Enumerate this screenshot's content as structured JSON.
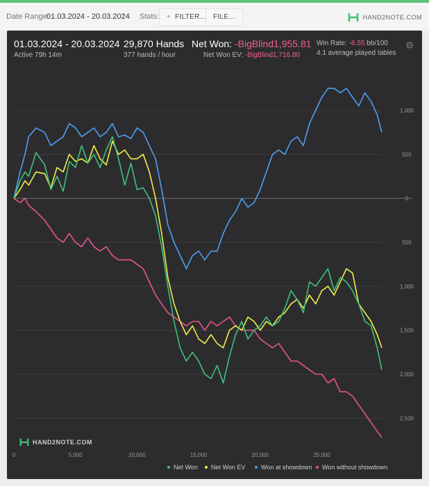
{
  "toolbar": {
    "date_range_label": "Date Range:",
    "date_range_value": "01.03.2024 - 20.03.2024",
    "stats_label": "Stats:",
    "filter_label": "FILTER...",
    "file_label": "FILE...",
    "brand_name": "HAND2NOTE.COM",
    "icons": [
      "chevron-down-icon",
      "plus-icon",
      "hand2note-logo-icon"
    ]
  },
  "summary": {
    "date_range": "01.03.2024 - 20.03.2024",
    "active_time": "Active 79h 14m",
    "hands_count": "29,870 Hands",
    "hands_rate": "377 hands / hour",
    "net_won_label": "Net Won:",
    "net_won_value": "-BigBlind1,955.81",
    "net_won_ev_label": "Net Won  EV:",
    "net_won_ev_value": "-BigBlind1,716.80",
    "win_rate_label": "Win Rate:",
    "win_rate_value": "-6.55",
    "win_rate_unit": "bb/100",
    "avg_tables": "4.1 average played tables",
    "settings_icon": "gear-icon"
  },
  "colors": {
    "net_won": "#3fc27a",
    "net_won_ev": "#f2ee47",
    "won_at_showdown": "#4e9ff0",
    "won_without_showdown": "#e8538a",
    "negative_text": "#ef5f86",
    "card_bg": "#2c2c2e"
  },
  "watermark": "HAND2NOTE.COM",
  "chart_data": {
    "type": "line",
    "xlim": [
      0,
      29870
    ],
    "ylim": [
      -2750,
      1450
    ],
    "x_ticks": [
      0,
      5000,
      10000,
      15000,
      20000,
      25000
    ],
    "x_tick_labels": [
      "0",
      "5,000",
      "10,000",
      "15,000",
      "20,000",
      "25,000"
    ],
    "y_ticks": [
      1000,
      500,
      0,
      -500,
      -1000,
      -1500,
      -2000,
      -2500
    ],
    "y_tick_labels": [
      "1,000",
      "500",
      "0",
      "500",
      "1,000",
      "1,500",
      "2,000",
      "2,500"
    ],
    "grid": true,
    "legend_position": "bottom-right",
    "series": [
      {
        "name": "Net Won",
        "x": [
          0,
          500,
          900,
          1200,
          1800,
          2500,
          3000,
          3500,
          4000,
          4500,
          5000,
          5500,
          6000,
          6500,
          7000,
          7500,
          8000,
          8500,
          9000,
          9500,
          10000,
          10500,
          11000,
          11500,
          12000,
          12500,
          13000,
          13500,
          14000,
          14500,
          15000,
          15500,
          16000,
          16500,
          17000,
          17500,
          18000,
          18500,
          19000,
          19500,
          20000,
          20500,
          21000,
          21500,
          22000,
          22500,
          23000,
          23500,
          24000,
          24500,
          25000,
          25500,
          26000,
          26500,
          27000,
          27500,
          28000,
          28500,
          29000,
          29500,
          29870
        ],
        "y": [
          0,
          200,
          300,
          250,
          520,
          380,
          100,
          250,
          80,
          420,
          350,
          600,
          400,
          500,
          350,
          550,
          700,
          450,
          150,
          400,
          100,
          120,
          0,
          -200,
          -550,
          -1000,
          -1400,
          -1700,
          -1850,
          -1750,
          -1850,
          -2000,
          -2050,
          -1900,
          -2100,
          -1800,
          -1550,
          -1400,
          -1600,
          -1500,
          -1450,
          -1350,
          -1450,
          -1400,
          -1250,
          -1050,
          -1150,
          -1300,
          -950,
          -1000,
          -900,
          -800,
          -1050,
          -900,
          -950,
          -1050,
          -1200,
          -1400,
          -1450,
          -1700,
          -1950
        ]
      },
      {
        "name": "Net Won  EV",
        "x": [
          0,
          500,
          900,
          1200,
          1800,
          2500,
          3000,
          3500,
          4000,
          4500,
          5000,
          5500,
          6000,
          6500,
          7000,
          7500,
          8000,
          8500,
          9000,
          9500,
          10000,
          10500,
          11000,
          11500,
          12000,
          12500,
          13000,
          13500,
          14000,
          14500,
          15000,
          15500,
          16000,
          16500,
          17000,
          17500,
          18000,
          18500,
          19000,
          19500,
          20000,
          20500,
          21000,
          21500,
          22000,
          22500,
          23000,
          23500,
          24000,
          24500,
          25000,
          25500,
          26000,
          26500,
          27000,
          27500,
          28000,
          28500,
          29000,
          29500,
          29870
        ],
        "y": [
          0,
          100,
          200,
          150,
          300,
          280,
          120,
          350,
          300,
          500,
          420,
          450,
          400,
          600,
          450,
          380,
          650,
          500,
          550,
          450,
          450,
          500,
          300,
          0,
          -400,
          -900,
          -1200,
          -1400,
          -1550,
          -1450,
          -1600,
          -1650,
          -1550,
          -1650,
          -1700,
          -1500,
          -1450,
          -1500,
          -1350,
          -1400,
          -1500,
          -1400,
          -1450,
          -1350,
          -1300,
          -1200,
          -1150,
          -1250,
          -1100,
          -1200,
          -1050,
          -1000,
          -1100,
          -950,
          -800,
          -850,
          -1200,
          -1300,
          -1400,
          -1550,
          -1700
        ]
      },
      {
        "name": "Won at showdown",
        "x": [
          0,
          500,
          900,
          1200,
          1800,
          2500,
          3000,
          3500,
          4000,
          4500,
          5000,
          5500,
          6000,
          6500,
          7000,
          7500,
          8000,
          8500,
          9000,
          9500,
          10000,
          10500,
          11000,
          11500,
          12000,
          12500,
          13000,
          13500,
          14000,
          14500,
          15000,
          15500,
          16000,
          16500,
          17000,
          17500,
          18000,
          18500,
          19000,
          19500,
          20000,
          20500,
          21000,
          21500,
          22000,
          22500,
          23000,
          23500,
          24000,
          24500,
          25000,
          25500,
          26000,
          26500,
          27000,
          27500,
          28000,
          28500,
          29000,
          29500,
          29870
        ],
        "y": [
          0,
          300,
          500,
          700,
          800,
          750,
          600,
          650,
          700,
          850,
          800,
          700,
          750,
          800,
          700,
          750,
          850,
          700,
          720,
          680,
          800,
          750,
          600,
          450,
          100,
          -300,
          -500,
          -650,
          -800,
          -650,
          -600,
          -700,
          -600,
          -600,
          -400,
          -250,
          -150,
          0,
          -100,
          -50,
          100,
          300,
          500,
          550,
          500,
          650,
          700,
          600,
          850,
          1000,
          1150,
          1250,
          1250,
          1200,
          1250,
          1150,
          1050,
          1200,
          1100,
          950,
          750
        ]
      },
      {
        "name": "Won without showdown",
        "x": [
          0,
          500,
          900,
          1200,
          1800,
          2500,
          3000,
          3500,
          4000,
          4500,
          5000,
          5500,
          6000,
          6500,
          7000,
          7500,
          8000,
          8500,
          9000,
          9500,
          10000,
          10500,
          11000,
          11500,
          12000,
          12500,
          13000,
          13500,
          14000,
          14500,
          15000,
          15500,
          16000,
          16500,
          17000,
          17500,
          18000,
          18500,
          19000,
          19500,
          20000,
          20500,
          21000,
          21500,
          22000,
          22500,
          23000,
          23500,
          24000,
          24500,
          25000,
          25500,
          26000,
          26500,
          27000,
          27500,
          28000,
          28500,
          29000,
          29500,
          29870
        ],
        "y": [
          0,
          -50,
          0,
          -80,
          -150,
          -250,
          -350,
          -450,
          -500,
          -400,
          -500,
          -550,
          -450,
          -550,
          -600,
          -550,
          -650,
          -700,
          -700,
          -700,
          -750,
          -800,
          -950,
          -1100,
          -1200,
          -1300,
          -1350,
          -1400,
          -1450,
          -1400,
          -1400,
          -1500,
          -1400,
          -1450,
          -1400,
          -1350,
          -1450,
          -1500,
          -1500,
          -1500,
          -1600,
          -1650,
          -1700,
          -1650,
          -1750,
          -1850,
          -1850,
          -1900,
          -1950,
          -2000,
          -2000,
          -2100,
          -2050,
          -2200,
          -2200,
          -2250,
          -2350,
          -2450,
          -2550,
          -2650,
          -2720
        ]
      }
    ]
  }
}
